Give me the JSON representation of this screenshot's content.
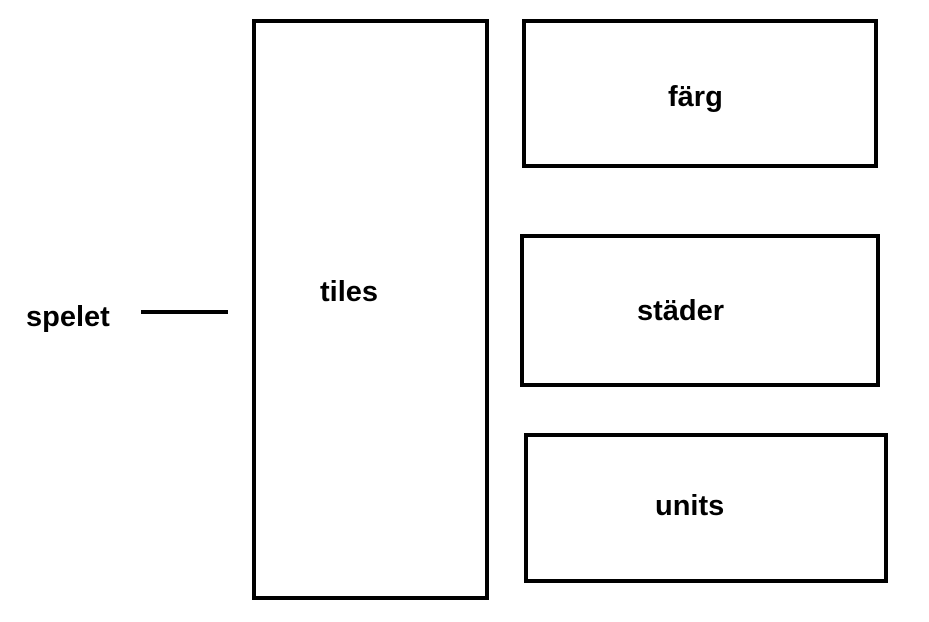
{
  "root": {
    "label": "spelet"
  },
  "boxes": {
    "tiles": "tiles",
    "farg": "färg",
    "stader": "städer",
    "units": "units"
  },
  "colors": {
    "stroke": "#000000",
    "background": "#ffffff"
  }
}
